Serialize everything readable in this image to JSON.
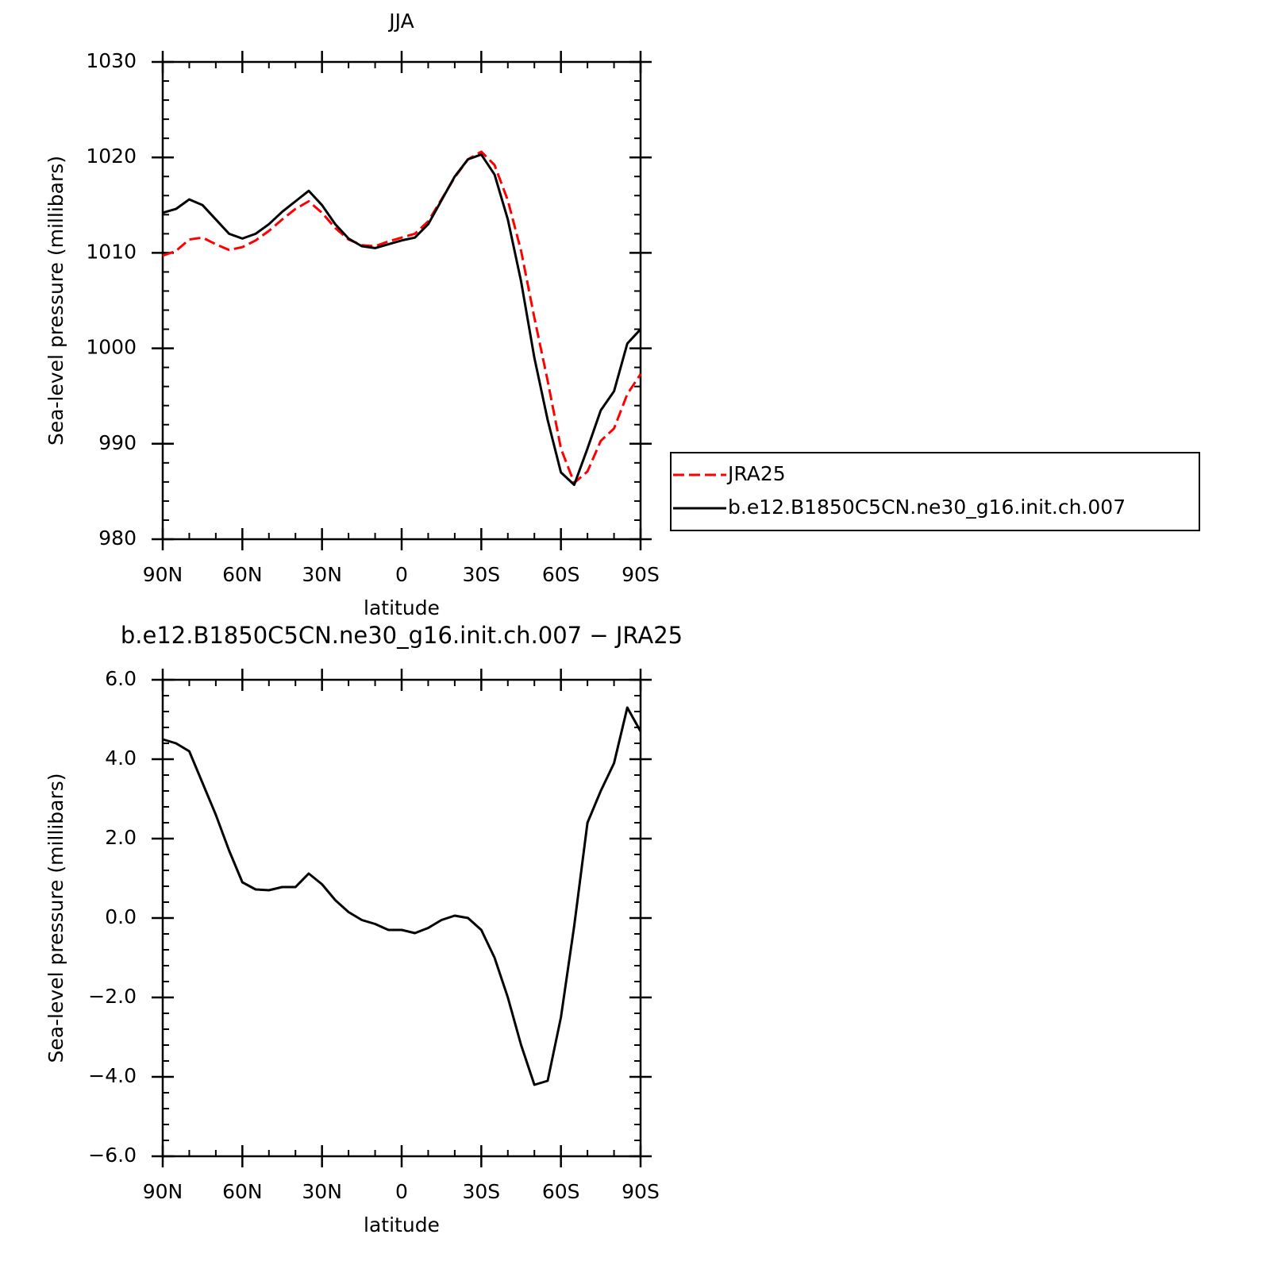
{
  "chart_data": [
    {
      "type": "line",
      "title": "JJA",
      "xlabel": "latitude",
      "ylabel": "Sea-level pressure (millibars)",
      "x": [
        90,
        85,
        80,
        75,
        70,
        65,
        60,
        55,
        50,
        45,
        40,
        35,
        30,
        25,
        20,
        15,
        10,
        5,
        0,
        -5,
        -10,
        -15,
        -20,
        -25,
        -30,
        -35,
        -40,
        -45,
        -50,
        -55,
        -60,
        -65,
        -70,
        -75,
        -80,
        -85,
        -90
      ],
      "xlim": [
        90,
        -90
      ],
      "xticks": [
        {
          "value": 90,
          "label": "90N"
        },
        {
          "value": 60,
          "label": "60N"
        },
        {
          "value": 30,
          "label": "30N"
        },
        0,
        {
          "value": -30,
          "label": "30S"
        },
        {
          "value": -60,
          "label": "60S"
        },
        {
          "value": -90,
          "label": "90S"
        }
      ],
      "ylim": [
        980,
        1030
      ],
      "yticks": [
        980,
        990,
        1000,
        1010,
        1020,
        1030
      ],
      "legend": "right",
      "series": [
        {
          "name": "JRA25",
          "color": "#ff0000",
          "line_style": "dashed",
          "values": [
            1009.7,
            1010.2,
            1011.4,
            1011.6,
            1010.9,
            1010.3,
            1010.6,
            1011.3,
            1012.3,
            1013.5,
            1014.6,
            1015.4,
            1014.2,
            1012.6,
            1011.4,
            1010.8,
            1010.7,
            1011.2,
            1011.6,
            1012.0,
            1013.3,
            1015.6,
            1017.9,
            1019.8,
            1020.6,
            1019.2,
            1015.5,
            1010.2,
            1003.2,
            996.6,
            989.5,
            985.9,
            987.1,
            990.3,
            991.6,
            995.2,
            997.3
          ]
        },
        {
          "name": "b.e12.B1850C5CN.ne30_g16.init.ch.007",
          "color": "#000000",
          "line_style": "solid",
          "values": [
            1014.2,
            1014.6,
            1015.6,
            1015.0,
            1013.5,
            1012.0,
            1011.5,
            1012.0,
            1013.0,
            1014.3,
            1015.4,
            1016.5,
            1015.0,
            1013.0,
            1011.5,
            1010.7,
            1010.5,
            1010.9,
            1011.3,
            1011.6,
            1013.0,
            1015.5,
            1018.0,
            1019.8,
            1020.3,
            1018.2,
            1013.5,
            1007.0,
            999.0,
            992.5,
            987.0,
            985.7,
            989.5,
            993.5,
            995.5,
            1000.5,
            1002.0
          ]
        }
      ]
    },
    {
      "type": "line",
      "title": "b.e12.B1850C5CN.ne30_g16.init.ch.007 − JRA25",
      "xlabel": "latitude",
      "ylabel": "Sea-level pressure (millibars)",
      "x": [
        90,
        85,
        80,
        75,
        70,
        65,
        60,
        55,
        50,
        45,
        40,
        35,
        30,
        25,
        20,
        15,
        10,
        5,
        0,
        -5,
        -10,
        -15,
        -20,
        -25,
        -30,
        -35,
        -40,
        -45,
        -50,
        -55,
        -60,
        -65,
        -70,
        -75,
        -80,
        -85,
        -90
      ],
      "xlim": [
        90,
        -90
      ],
      "xticks": [
        {
          "value": 90,
          "label": "90N"
        },
        {
          "value": 60,
          "label": "60N"
        },
        {
          "value": 30,
          "label": "30N"
        },
        0,
        {
          "value": -30,
          "label": "30S"
        },
        {
          "value": -60,
          "label": "60S"
        },
        {
          "value": -90,
          "label": "90S"
        }
      ],
      "ylim": [
        -6,
        6
      ],
      "yticks": [
        {
          "value": -6,
          "label": "−6.0"
        },
        {
          "value": -4,
          "label": "−4.0"
        },
        {
          "value": -2,
          "label": "−2.0"
        },
        {
          "value": 0,
          "label": "0.0"
        },
        {
          "value": 2,
          "label": "2.0"
        },
        {
          "value": 4,
          "label": "4.0"
        },
        {
          "value": 6,
          "label": "6.0"
        }
      ],
      "color": "#000000",
      "values": [
        4.5,
        4.4,
        4.2,
        3.4,
        2.6,
        1.7,
        0.9,
        0.72,
        0.7,
        0.78,
        0.78,
        1.12,
        0.85,
        0.45,
        0.15,
        -0.05,
        -0.15,
        -0.3,
        -0.3,
        -0.38,
        -0.25,
        -0.05,
        0.06,
        0.0,
        -0.3,
        -1.0,
        -2.0,
        -3.2,
        -4.2,
        -4.1,
        -2.5,
        -0.2,
        2.4,
        3.2,
        3.9,
        5.3,
        4.7
      ]
    }
  ]
}
